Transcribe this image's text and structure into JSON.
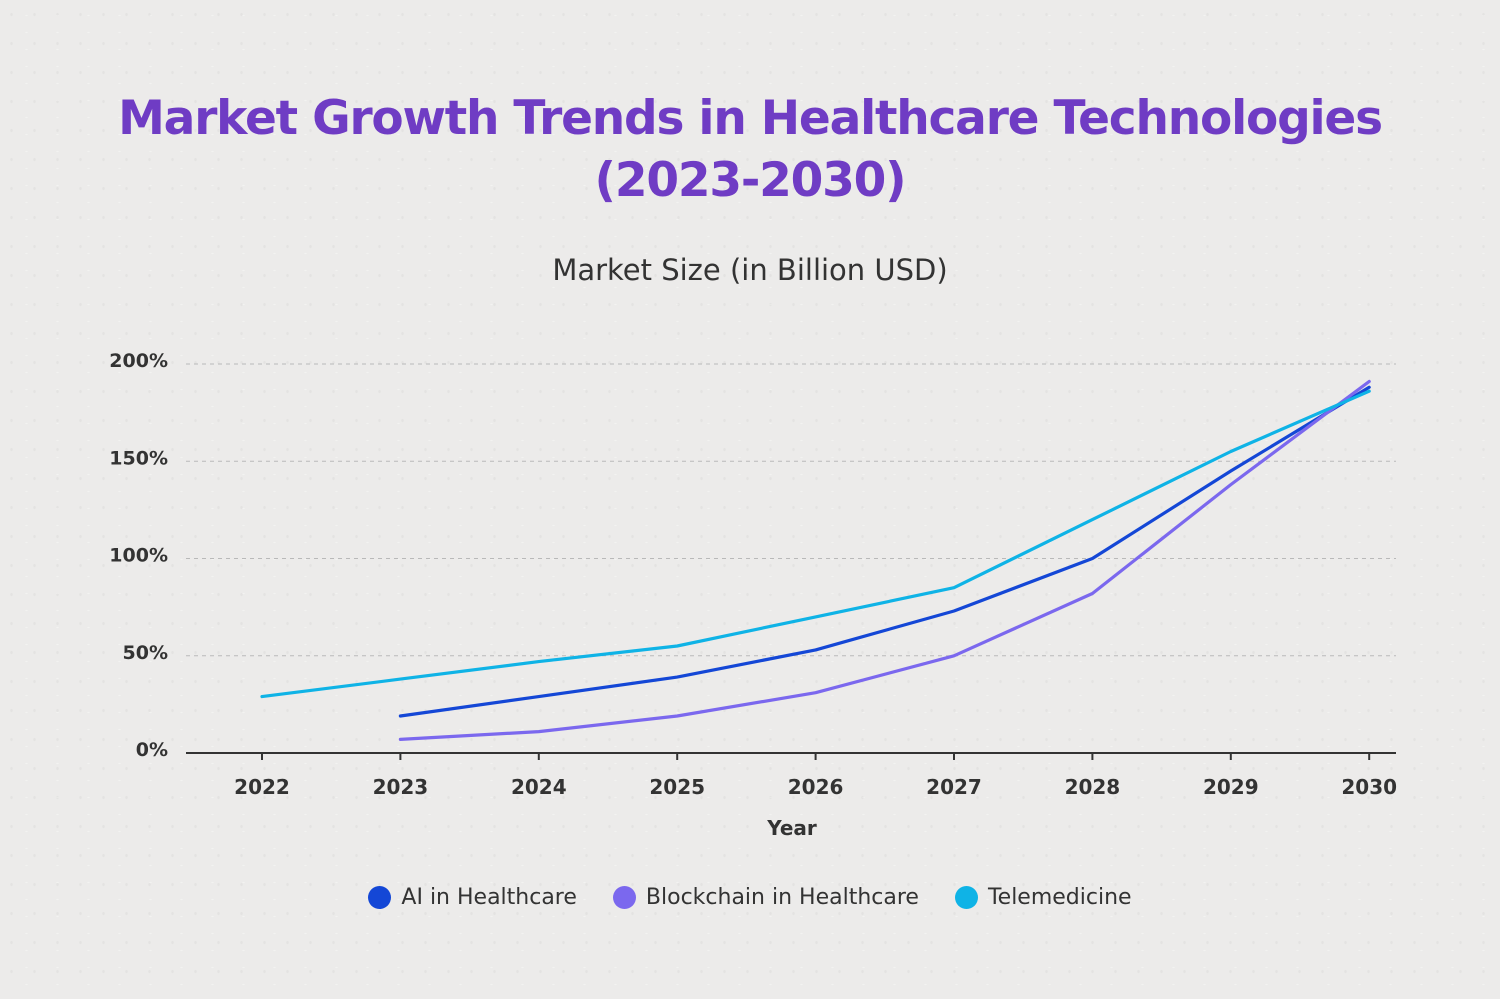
{
  "chart_data": {
    "type": "line",
    "title_line1": "Market Growth Trends in Healthcare Technologies",
    "title_line2": "(2023-2030)",
    "subtitle": "Market Size (in Billion USD)",
    "xlabel": "Year",
    "ylabel": "",
    "categories": [
      "2022",
      "2023",
      "2024",
      "2025",
      "2026",
      "2027",
      "2028",
      "2029",
      "2030"
    ],
    "ylim": [
      0,
      200
    ],
    "yticks": [
      0,
      50,
      100,
      150,
      200
    ],
    "ytick_labels": [
      "0%",
      "50%",
      "100%",
      "150%",
      "200%"
    ],
    "grid": true,
    "legend_position": "bottom",
    "series": [
      {
        "name": "AI in Healthcare",
        "color": "#1447d6",
        "values": [
          null,
          19,
          29,
          39,
          53,
          73,
          100,
          145,
          188
        ]
      },
      {
        "name": "Blockchain in Healthcare",
        "color": "#7b68ee",
        "values": [
          null,
          7,
          11,
          19,
          31,
          50,
          82,
          138,
          191
        ]
      },
      {
        "name": "Telemedicine",
        "color": "#0fb3e6",
        "values": [
          29,
          38,
          47,
          55,
          70,
          85,
          120,
          155,
          186
        ]
      }
    ]
  }
}
